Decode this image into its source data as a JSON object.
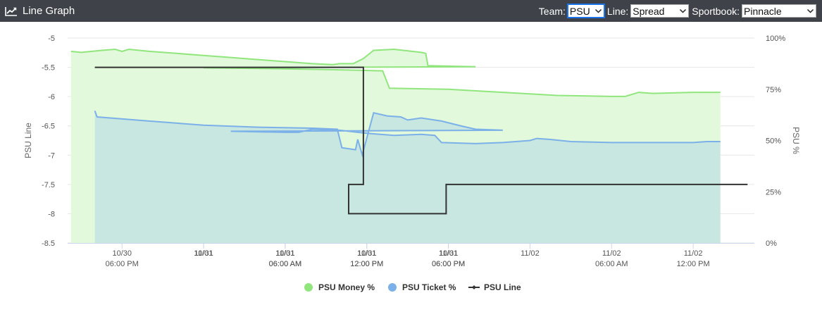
{
  "header": {
    "title": "Line Graph",
    "team_label": "Team:",
    "team_value": "PSU",
    "line_label": "Line:",
    "line_value": "Spread",
    "sportbook_label": "Sportbook:",
    "sportbook_value": "Pinnacle"
  },
  "colors": {
    "header_bg": "#3f4249",
    "money": "#90e67d",
    "money_fill": "#e2f9dc",
    "ticket": "#7cb0e8",
    "ticket_fill": "#c7e7e0",
    "line": "#333333"
  },
  "chart_data": {
    "type": "line",
    "title": "",
    "ylabel": "PSU Line",
    "y2label": "PSU %",
    "ylim": [
      -8.5,
      -5
    ],
    "y2lim": [
      0,
      100
    ],
    "xlim": [
      "10/30 14:00",
      "11/02 16:30"
    ],
    "grid": true,
    "legend_position": "bottom-center",
    "y_ticks": [
      "-5",
      "-5.5",
      "-6",
      "-6.5",
      "-7",
      "-7.5",
      "-8",
      "-8.5"
    ],
    "y2_ticks": [
      "100%",
      "75%",
      "50%",
      "25%",
      "0%"
    ],
    "x_ticks": [
      {
        "t": "10/30 18:00",
        "date": "10/30",
        "time": "06:00 PM"
      },
      {
        "t": "10/31 00:00",
        "date": "10/31",
        "time": ""
      },
      {
        "t": "10/31 06:00",
        "date": "10/31",
        "time": "06:00 AM"
      },
      {
        "t": "10/31 12:00",
        "date": "10/31",
        "time": "12:00 PM"
      },
      {
        "t": "10/31 18:00",
        "date": "10/31",
        "time": "06:00 PM"
      },
      {
        "t": "11/01 00:00",
        "date": "11/01",
        "time": ""
      },
      {
        "t": "11/01 06:00",
        "date": "11/01",
        "time": "06:00 AM"
      },
      {
        "t": "11/01 12:00",
        "date": "11/01",
        "time": "12:00 PM"
      },
      {
        "t": "11/01 18:00",
        "date": "11/01",
        "time": "06:00 PM"
      },
      {
        "t": "11/02 00:00",
        "date": "11/02",
        "time": ""
      },
      {
        "t": "11/02 06:00",
        "date": "11/02",
        "time": "06:00 AM"
      },
      {
        "t": "11/02 12:00",
        "date": "11/02",
        "time": "12:00 PM"
      }
    ],
    "series": [
      {
        "name": "PSU Money %",
        "axis": "right",
        "style": "area",
        "points": [
          [
            "10/30 14:15",
            93.5
          ],
          [
            "10/30 15:00",
            93.0
          ],
          [
            "10/30 16:30",
            94.0
          ],
          [
            "10/30 17:30",
            94.5
          ],
          [
            "10/30 18:00",
            93.5
          ],
          [
            "10/30 18:30",
            94.5
          ],
          [
            "10/30 20:00",
            93.5
          ],
          [
            "10/30 22:00",
            92.5
          ],
          [
            "10/31 00:00",
            91.5
          ],
          [
            "10/31 02:00",
            90.5
          ],
          [
            "10/31 04:00",
            89.5
          ],
          [
            "10/31 06:00",
            88.5
          ],
          [
            "10/31 08:00",
            87.5
          ],
          [
            "10/31 09:30",
            87.0
          ],
          [
            "10/31 10:00",
            87.5
          ],
          [
            "10/31 11:00",
            87.5
          ],
          [
            "10/31 11:45",
            90.0
          ],
          [
            "10/31 12:30",
            94.0
          ],
          [
            "10/31 14:00",
            94.5
          ],
          [
            "10/31 16:00",
            93.0
          ],
          [
            "10/31 16:20",
            92.5
          ],
          [
            "10/31 16:30",
            86.5
          ],
          [
            "10/31 20:00",
            86.0
          ],
          [
            "11/01 00:00",
            85.5
          ],
          [
            "11/01 06:00",
            85.0
          ],
          [
            "11/01 10:00",
            84.5
          ],
          [
            "11/01 13:10",
            84.0
          ],
          [
            "11/01 13:40",
            75.5
          ],
          [
            "11/01 18:00",
            75.0
          ],
          [
            "11/01 22:00",
            73.5
          ],
          [
            "11/02 02:00",
            72.0
          ],
          [
            "11/02 06:00",
            71.5
          ],
          [
            "11/02 07:00",
            71.5
          ],
          [
            "11/02 08:00",
            73.5
          ],
          [
            "11/02 09:00",
            73.0
          ],
          [
            "11/02 12:00",
            73.5
          ],
          [
            "11/02 14:00",
            73.5
          ]
        ]
      },
      {
        "name": "PSU Ticket %",
        "axis": "right",
        "style": "area",
        "points": [
          [
            "10/30 16:00",
            64.5
          ],
          [
            "10/30 16:10",
            61.5
          ],
          [
            "10/30 20:00",
            59.5
          ],
          [
            "10/31 00:00",
            57.5
          ],
          [
            "10/31 04:00",
            56.5
          ],
          [
            "10/31 08:00",
            56.0
          ],
          [
            "10/31 09:50",
            55.5
          ],
          [
            "10/31 10:10",
            46.5
          ],
          [
            "10/31 11:10",
            45.5
          ],
          [
            "10/31 11:20",
            50.5
          ],
          [
            "10/31 11:40",
            43.0
          ],
          [
            "10/31 12:30",
            63.5
          ],
          [
            "10/31 13:30",
            62.0
          ],
          [
            "10/31 14:30",
            61.5
          ],
          [
            "10/31 15:00",
            60.0
          ],
          [
            "10/31 16:00",
            61.0
          ],
          [
            "10/31 17:30",
            59.5
          ],
          [
            "10/31 19:00",
            57.0
          ],
          [
            "10/31 20:00",
            55.5
          ],
          [
            "10/31 22:00",
            55.0
          ],
          [
            "11/01 02:00",
            54.5
          ],
          [
            "11/01 06:00",
            54.0
          ],
          [
            "11/01 07:00",
            54.0
          ],
          [
            "11/01 08:00",
            55.5
          ],
          [
            "11/01 10:00",
            55.0
          ],
          [
            "11/01 12:00",
            53.5
          ],
          [
            "11/01 14:00",
            52.5
          ],
          [
            "11/01 16:00",
            53.0
          ],
          [
            "11/01 17:00",
            52.5
          ],
          [
            "11/01 17:30",
            49.0
          ],
          [
            "11/01 20:00",
            48.5
          ],
          [
            "11/01 22:00",
            49.0
          ],
          [
            "11/02 00:00",
            50.0
          ],
          [
            "11/02 00:30",
            51.0
          ],
          [
            "11/02 01:30",
            50.5
          ],
          [
            "11/02 03:00",
            49.5
          ],
          [
            "11/02 06:00",
            49.0
          ],
          [
            "11/02 10:00",
            49.0
          ],
          [
            "11/02 12:00",
            49.0
          ],
          [
            "11/02 13:00",
            49.5
          ],
          [
            "11/02 14:00",
            49.5
          ]
        ]
      },
      {
        "name": "PSU Line",
        "axis": "left",
        "style": "step",
        "points": [
          [
            "10/30 16:00",
            -5.5
          ],
          [
            "10/31 11:45",
            -5.5
          ],
          [
            "10/31 11:45",
            -7.5
          ],
          [
            "11/01 10:40",
            -7.5
          ],
          [
            "11/01 10:40",
            -8.0
          ],
          [
            "11/01 17:50",
            -8.0
          ],
          [
            "11/01 17:50",
            -7.5
          ],
          [
            "11/02 16:00",
            -7.5
          ]
        ]
      }
    ]
  }
}
